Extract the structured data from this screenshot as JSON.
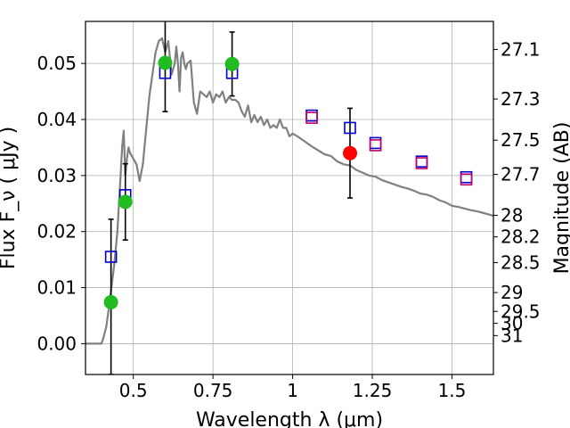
{
  "chart_data": {
    "type": "scatter",
    "xlabel": "Wavelength  λ (μm)",
    "ylabel": "Flux  F_ν  ( μJy )",
    "ylabel_right": "Magnitude (AB)",
    "xlim": [
      0.35,
      1.63
    ],
    "ylim": [
      -0.0055,
      0.0575
    ],
    "grid": true,
    "x_ticks": [
      {
        "value": 0.5,
        "label": "0.5"
      },
      {
        "value": 0.75,
        "label": "0.75"
      },
      {
        "value": 1.0,
        "label": "1"
      },
      {
        "value": 1.25,
        "label": "1.25"
      },
      {
        "value": 1.5,
        "label": "1.5"
      }
    ],
    "y_ticks": [
      {
        "value": 0.0,
        "label": "0.00"
      },
      {
        "value": 0.01,
        "label": "0.01"
      },
      {
        "value": 0.02,
        "label": "0.02"
      },
      {
        "value": 0.03,
        "label": "0.03"
      },
      {
        "value": 0.04,
        "label": "0.04"
      },
      {
        "value": 0.05,
        "label": "0.05"
      }
    ],
    "right_ticks": [
      {
        "mag": 27.1,
        "label": "27.1"
      },
      {
        "mag": 27.3,
        "label": "27.3"
      },
      {
        "mag": 27.5,
        "label": "27.5"
      },
      {
        "mag": 27.7,
        "label": "27.7"
      },
      {
        "mag": 28,
        "label": "28"
      },
      {
        "mag": 28.2,
        "label": "28.2"
      },
      {
        "mag": 28.5,
        "label": "28.5"
      },
      {
        "mag": 29,
        "label": "29"
      },
      {
        "mag": 29.5,
        "label": "29.5"
      },
      {
        "mag": 30,
        "label": "30"
      },
      {
        "mag": 31,
        "label": "31"
      }
    ],
    "model_curve": {
      "color": "#808080",
      "points": [
        [
          0.35,
          0.0
        ],
        [
          0.38,
          0.0
        ],
        [
          0.4,
          0.0
        ],
        [
          0.405,
          0.0008
        ],
        [
          0.415,
          0.003
        ],
        [
          0.425,
          0.007
        ],
        [
          0.44,
          0.014
        ],
        [
          0.45,
          0.02
        ],
        [
          0.455,
          0.025
        ],
        [
          0.46,
          0.03
        ],
        [
          0.465,
          0.035
        ],
        [
          0.47,
          0.038
        ],
        [
          0.475,
          0.03
        ],
        [
          0.48,
          0.033
        ],
        [
          0.485,
          0.035
        ],
        [
          0.49,
          0.034
        ],
        [
          0.5,
          0.033
        ],
        [
          0.51,
          0.032
        ],
        [
          0.52,
          0.029
        ],
        [
          0.53,
          0.032
        ],
        [
          0.54,
          0.038
        ],
        [
          0.55,
          0.044
        ],
        [
          0.56,
          0.048
        ],
        [
          0.57,
          0.052
        ],
        [
          0.58,
          0.054
        ],
        [
          0.59,
          0.0545
        ],
        [
          0.6,
          0.052
        ],
        [
          0.61,
          0.054
        ],
        [
          0.62,
          0.048
        ],
        [
          0.63,
          0.05
        ],
        [
          0.635,
          0.053
        ],
        [
          0.64,
          0.05
        ],
        [
          0.645,
          0.045
        ],
        [
          0.65,
          0.051
        ],
        [
          0.655,
          0.052
        ],
        [
          0.66,
          0.05
        ],
        [
          0.665,
          0.049
        ],
        [
          0.67,
          0.05
        ],
        [
          0.68,
          0.0505
        ],
        [
          0.69,
          0.043
        ],
        [
          0.7,
          0.041
        ],
        [
          0.71,
          0.045
        ],
        [
          0.72,
          0.0445
        ],
        [
          0.73,
          0.044
        ],
        [
          0.74,
          0.045
        ],
        [
          0.75,
          0.043
        ],
        [
          0.76,
          0.0445
        ],
        [
          0.77,
          0.044
        ],
        [
          0.78,
          0.045
        ],
        [
          0.79,
          0.043
        ],
        [
          0.8,
          0.044
        ],
        [
          0.81,
          0.0435
        ],
        [
          0.82,
          0.0435
        ],
        [
          0.83,
          0.043
        ],
        [
          0.84,
          0.0415
        ],
        [
          0.85,
          0.0405
        ],
        [
          0.86,
          0.0425
        ],
        [
          0.87,
          0.0395
        ],
        [
          0.88,
          0.0408
        ],
        [
          0.89,
          0.0395
        ],
        [
          0.9,
          0.0405
        ],
        [
          0.91,
          0.039
        ],
        [
          0.92,
          0.04
        ],
        [
          0.93,
          0.0385
        ],
        [
          0.94,
          0.039
        ],
        [
          0.95,
          0.0385
        ],
        [
          0.96,
          0.04
        ],
        [
          0.97,
          0.0385
        ],
        [
          0.98,
          0.0385
        ],
        [
          0.99,
          0.037
        ],
        [
          1.0,
          0.0375
        ],
        [
          1.02,
          0.0368
        ],
        [
          1.04,
          0.036
        ],
        [
          1.06,
          0.0352
        ],
        [
          1.08,
          0.0345
        ],
        [
          1.1,
          0.0338
        ],
        [
          1.12,
          0.0335
        ],
        [
          1.14,
          0.0325
        ],
        [
          1.16,
          0.032
        ],
        [
          1.18,
          0.0318
        ],
        [
          1.2,
          0.031
        ],
        [
          1.22,
          0.0305
        ],
        [
          1.24,
          0.03
        ],
        [
          1.26,
          0.0298
        ],
        [
          1.28,
          0.0292
        ],
        [
          1.3,
          0.0288
        ],
        [
          1.32,
          0.0284
        ],
        [
          1.34,
          0.028
        ],
        [
          1.36,
          0.0277
        ],
        [
          1.38,
          0.0273
        ],
        [
          1.4,
          0.0268
        ],
        [
          1.42,
          0.0266
        ],
        [
          1.44,
          0.0262
        ],
        [
          1.46,
          0.0256
        ],
        [
          1.48,
          0.0252
        ],
        [
          1.5,
          0.0246
        ],
        [
          1.52,
          0.0244
        ],
        [
          1.54,
          0.0241
        ],
        [
          1.56,
          0.0238
        ],
        [
          1.58,
          0.0236
        ],
        [
          1.6,
          0.0233
        ],
        [
          1.62,
          0.023
        ],
        [
          1.63,
          0.0228
        ]
      ]
    },
    "model_photometry_blue": {
      "color": "#0000cc",
      "points": [
        {
          "x": 0.43,
          "y": 0.0155
        },
        {
          "x": 0.475,
          "y": 0.0265
        },
        {
          "x": 0.6,
          "y": 0.0483
        },
        {
          "x": 0.81,
          "y": 0.0483
        },
        {
          "x": 1.06,
          "y": 0.0407
        },
        {
          "x": 1.18,
          "y": 0.0385
        },
        {
          "x": 1.26,
          "y": 0.0358
        },
        {
          "x": 1.405,
          "y": 0.0325
        },
        {
          "x": 1.545,
          "y": 0.0297
        }
      ]
    },
    "model_photometry_magenta": {
      "color": "#c0006a",
      "points": [
        {
          "x": 1.06,
          "y": 0.0403
        },
        {
          "x": 1.26,
          "y": 0.0354
        },
        {
          "x": 1.405,
          "y": 0.0322
        },
        {
          "x": 1.545,
          "y": 0.0293
        }
      ]
    },
    "observed_detections": {
      "color": "#22bb22",
      "points": [
        {
          "x": 0.43,
          "y": 0.0074,
          "yerr_low": 0.0129,
          "yerr_high": 0.0148
        },
        {
          "x": 0.475,
          "y": 0.0253,
          "yerr_low": 0.0068,
          "yerr_high": 0.0068
        },
        {
          "x": 0.6,
          "y": 0.0501,
          "yerr_low": 0.0087,
          "yerr_high": 0.0075
        },
        {
          "x": 0.81,
          "y": 0.0499,
          "yerr_low": 0.0057,
          "yerr_high": 0.0057
        }
      ]
    },
    "observed_nir": {
      "color": "#ff0000",
      "points": [
        {
          "x": 1.18,
          "y": 0.034,
          "yerr_low": 0.008,
          "yerr_high": 0.008
        }
      ]
    }
  }
}
